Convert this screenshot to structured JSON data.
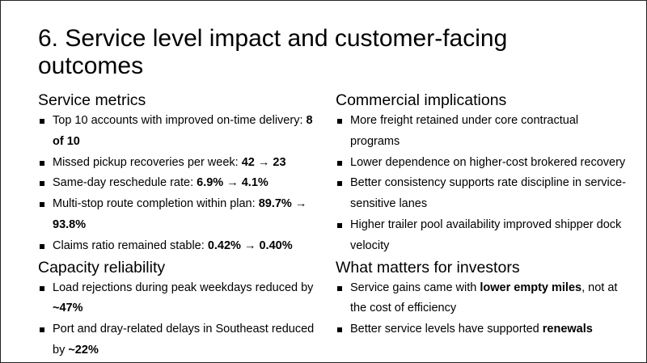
{
  "title": "6. Service level impact and customer-facing outcomes",
  "columns": [
    {
      "sections": [
        {
          "heading": "Service metrics",
          "bullets": [
            {
              "parts": [
                {
                  "text": "Top 10 accounts with improved on-time delivery: "
                },
                {
                  "text": "8 of 10",
                  "bold": true
                }
              ]
            },
            {
              "parts": [
                {
                  "text": "Missed pickup recoveries per week: "
                },
                {
                  "text": "42 → 23",
                  "bold": true
                }
              ]
            },
            {
              "parts": [
                {
                  "text": "Same-day reschedule rate: "
                },
                {
                  "text": "6.9% → 4.1%",
                  "bold": true
                }
              ]
            },
            {
              "parts": [
                {
                  "text": "Multi-stop route completion within plan: "
                },
                {
                  "text": "89.7% → 93.8%",
                  "bold": true
                }
              ]
            },
            {
              "parts": [
                {
                  "text": "Claims ratio remained stable: "
                },
                {
                  "text": "0.42% → 0.40%",
                  "bold": true
                }
              ]
            }
          ]
        },
        {
          "heading": "Capacity reliability",
          "bullets": [
            {
              "parts": [
                {
                  "text": "Load rejections during peak weekdays reduced by "
                },
                {
                  "text": "~47%",
                  "bold": true
                }
              ]
            },
            {
              "parts": [
                {
                  "text": "Port and dray-related delays in Southeast reduced by "
                },
                {
                  "text": "~22%",
                  "bold": true
                }
              ]
            }
          ]
        }
      ]
    },
    {
      "sections": [
        {
          "heading": "Commercial implications",
          "bullets": [
            {
              "parts": [
                {
                  "text": "More freight retained under core contractual programs"
                }
              ]
            },
            {
              "parts": [
                {
                  "text": "Lower dependence on higher-cost brokered recovery"
                }
              ]
            },
            {
              "parts": [
                {
                  "text": "Better consistency supports rate discipline in service-sensitive lanes"
                }
              ]
            },
            {
              "parts": [
                {
                  "text": "Higher trailer pool availability improved shipper dock velocity"
                }
              ]
            }
          ]
        },
        {
          "heading": "What matters for investors",
          "bullets": [
            {
              "parts": [
                {
                  "text": "Service gains came with "
                },
                {
                  "text": "lower empty miles",
                  "bold": true
                },
                {
                  "text": ", not at the cost of efficiency"
                }
              ]
            },
            {
              "parts": [
                {
                  "text": "Better service levels have supported "
                },
                {
                  "text": "renewals",
                  "bold": true
                }
              ]
            }
          ]
        }
      ]
    }
  ]
}
